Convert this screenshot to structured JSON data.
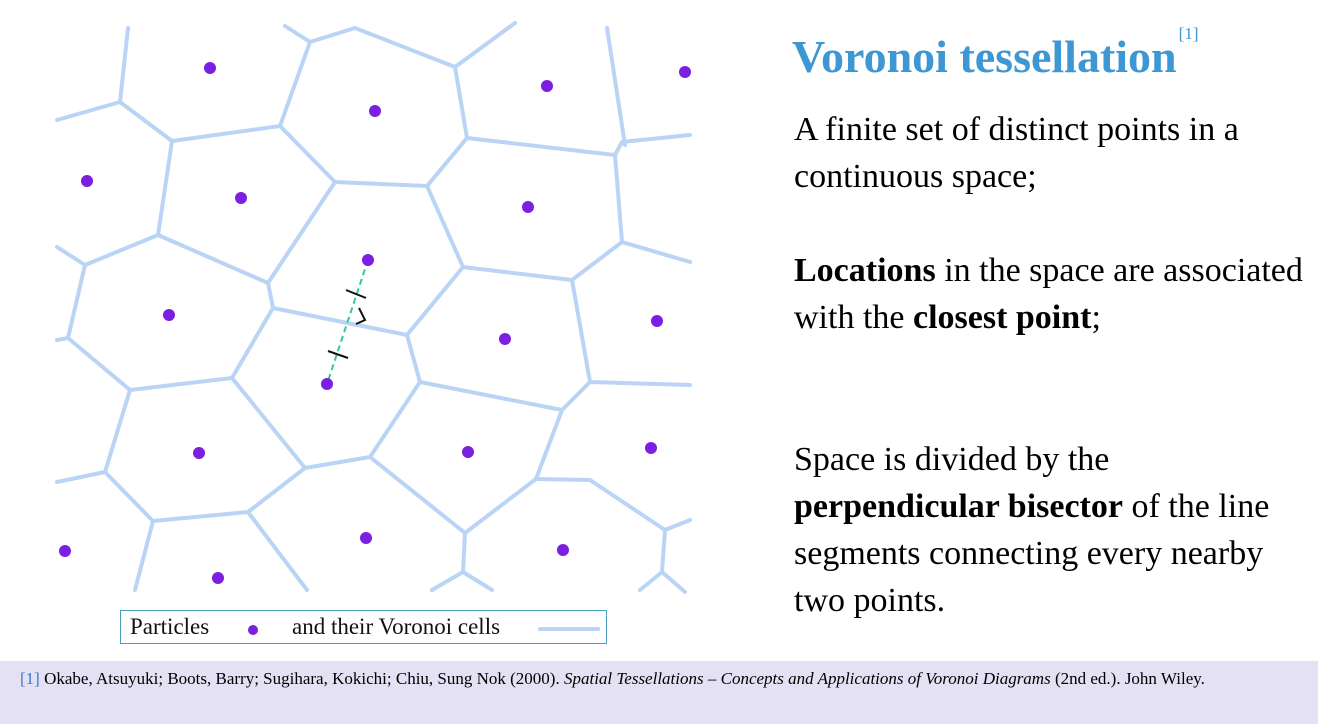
{
  "title": "Voronoi tessellation",
  "title_ref": "[1]",
  "paragraphs": {
    "p1": "A finite set of distinct points in a continuous space;",
    "p2": {
      "a": "Locations",
      "b": " in the space are associated with the ",
      "c": "closest point",
      "d": ";"
    },
    "p3": {
      "a": "Space is divided by the ",
      "b": "perpendicular bisector",
      "c": " of the line segments connecting every nearby two points."
    }
  },
  "legend": {
    "particles_label": "Particles",
    "cells_label": "and their Voronoi cells"
  },
  "footnote": {
    "mark": "[1]",
    "authors": " Okabe, Atsuyuki; Boots, Barry; Sugihara, Kokichi; Chiu, Sung Nok (2000). ",
    "book_title": "Spatial Tessellations – Concepts and Applications of Voronoi Diagrams",
    "tail": " (2nd ed.). John Wiley."
  },
  "colors": {
    "point": "#7b1fe0",
    "cell_edge": "#b9d4f5",
    "bisector_segment": "#2ecf8a",
    "title": "#3c97d4",
    "footnote_bg": "#e3e1f3"
  },
  "diagram_icons": [
    "right-angle-icon",
    "tick-mark-icon"
  ]
}
